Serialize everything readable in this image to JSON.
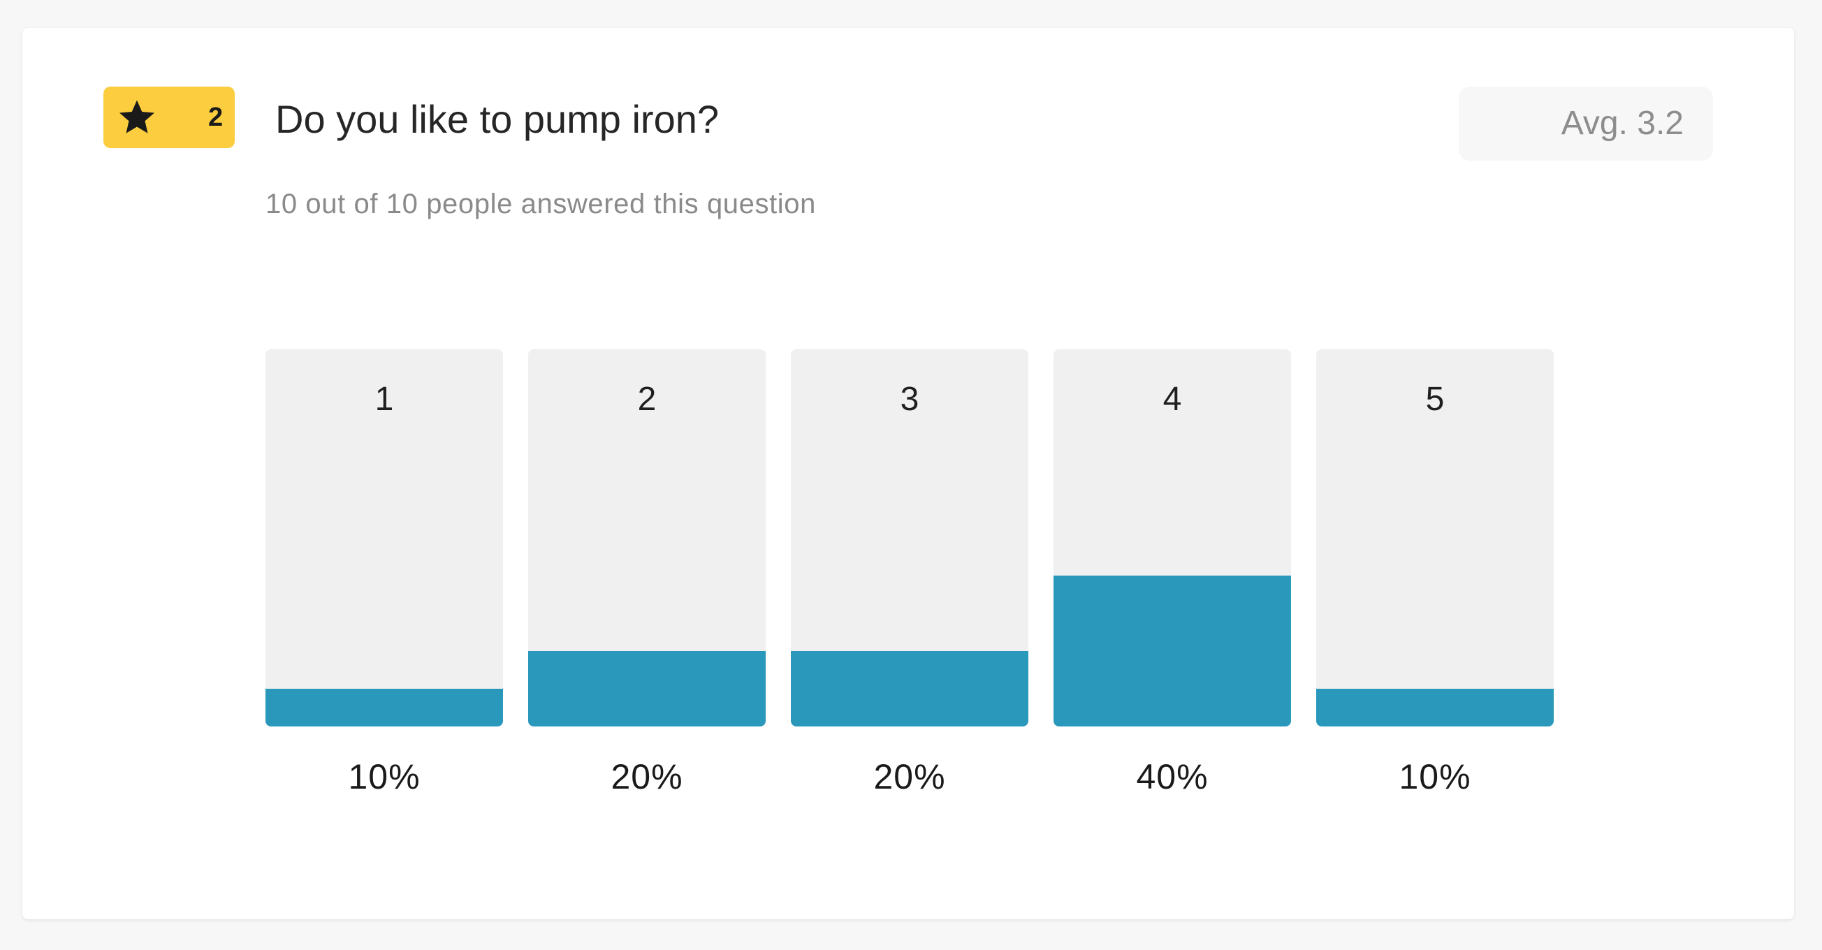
{
  "question": {
    "badge_number": "2",
    "badge_icon": "star-icon",
    "title": "Do you like to pump iron?",
    "subtitle": "10 out of 10 people answered this question",
    "average": "Avg. 3.2"
  },
  "colors": {
    "badge": "#fbcd3f",
    "bar_fill": "#2a98bb",
    "bar_track": "#f0f0f0"
  },
  "chart_data": {
    "type": "bar",
    "categories": [
      "1",
      "2",
      "3",
      "4",
      "5"
    ],
    "values": [
      10,
      20,
      20,
      40,
      10
    ],
    "value_labels": [
      "10%",
      "20%",
      "20%",
      "40%",
      "10%"
    ],
    "ylim": [
      0,
      100
    ],
    "title": "",
    "xlabel": "",
    "ylabel": ""
  }
}
